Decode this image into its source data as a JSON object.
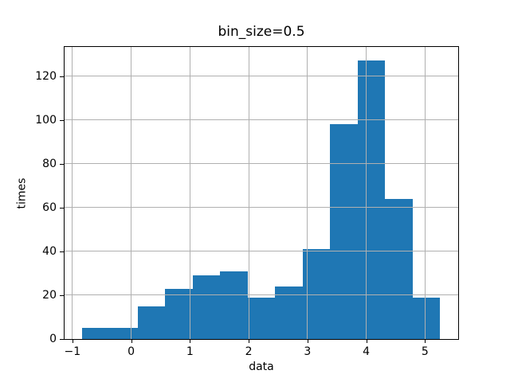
{
  "chart_data": {
    "type": "bar",
    "subtype": "histogram",
    "title": "bin_size=0.5",
    "xlabel": "data",
    "ylabel": "times",
    "bin_edges": [
      -0.83,
      -0.362,
      0.107,
      0.575,
      1.044,
      1.512,
      1.981,
      2.449,
      2.918,
      3.386,
      3.855,
      4.323,
      4.792,
      5.26
    ],
    "counts": [
      5,
      5,
      15,
      23,
      29,
      31,
      19,
      24,
      41,
      98,
      127,
      64,
      19
    ],
    "xtick_values": [
      -1,
      0,
      1,
      2,
      3,
      4,
      5
    ],
    "xtick_labels": [
      "−1",
      "0",
      "1",
      "2",
      "3",
      "4",
      "5"
    ],
    "ytick_values": [
      0,
      20,
      40,
      60,
      80,
      100,
      120
    ],
    "ytick_labels": [
      "0",
      "20",
      "40",
      "60",
      "80",
      "100",
      "120"
    ],
    "xlim": [
      -1.134,
      5.565
    ],
    "ylim": [
      0,
      133.35
    ],
    "grid": true,
    "grid_over_bars": true,
    "legend": null,
    "bar_color": "#1f77b4",
    "grid_color": "#b0b0b0",
    "axis_color": "#000000",
    "background_color": "#ffffff"
  }
}
